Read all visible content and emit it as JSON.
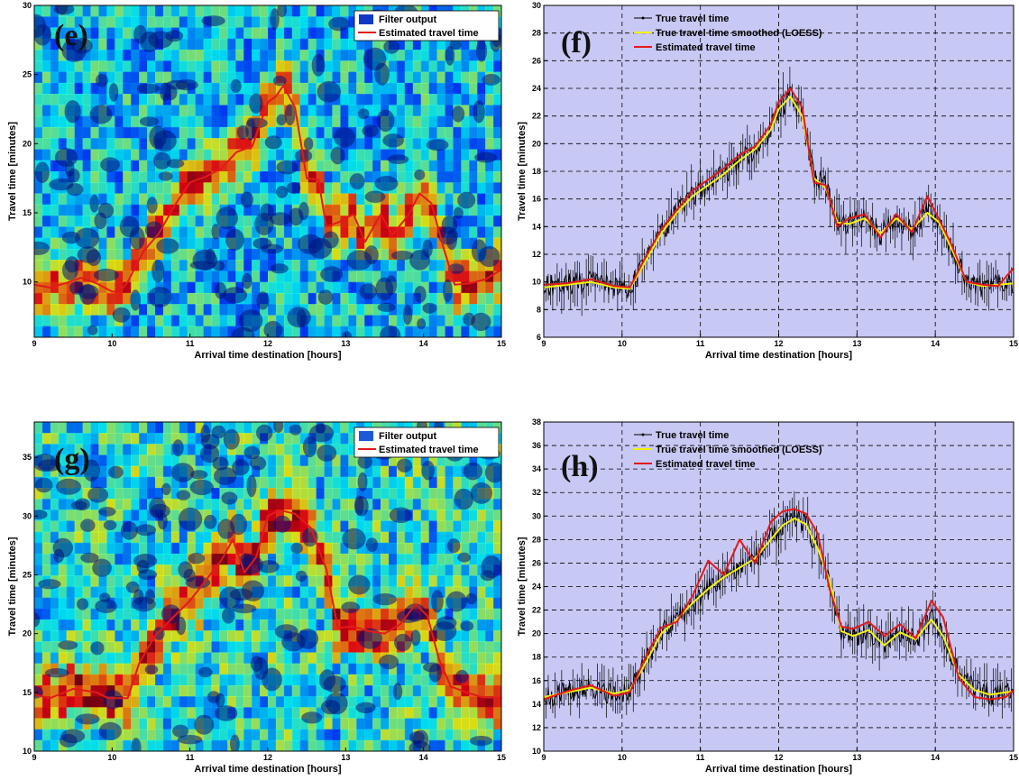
{
  "chart_data": [
    {
      "panel": "e",
      "type": "heatmap",
      "tag": "(e)",
      "xlabel": "Arrival time destination [hours]",
      "ylabel": "Travel time [minutes]",
      "xlim": [
        9,
        15
      ],
      "ylim": [
        6,
        30
      ],
      "xticks": [
        "9",
        "10",
        "11",
        "12",
        "13",
        "14",
        "15"
      ],
      "yticks": [
        "10",
        "15",
        "20",
        "25",
        "30"
      ],
      "legend": [
        "Filter output",
        "Estimated travel time"
      ],
      "legend_position": "top-right",
      "colors": {
        "filter": "#1238c8",
        "estimate": "#e21a1a"
      },
      "series": [
        {
          "name": "Estimated travel time",
          "x": [
            9.0,
            9.2,
            9.4,
            9.6,
            9.8,
            10.0,
            10.1,
            10.2,
            10.4,
            10.6,
            10.8,
            11.0,
            11.2,
            11.4,
            11.6,
            11.8,
            12.0,
            12.1,
            12.2,
            12.35,
            12.5,
            12.65,
            12.75,
            12.9,
            13.1,
            13.25,
            13.45,
            13.6,
            13.8,
            13.95,
            14.1,
            14.25,
            14.4,
            14.6,
            14.8,
            15.0
          ],
          "y": [
            9.8,
            9.6,
            9.9,
            10.3,
            9.9,
            9.3,
            9.3,
            10.0,
            12.2,
            13.5,
            15.5,
            17.2,
            17.6,
            18.2,
            19.4,
            19.8,
            23.0,
            23.4,
            24.2,
            22.6,
            17.5,
            17.4,
            14.0,
            14.3,
            14.9,
            12.9,
            14.9,
            13.4,
            14.8,
            16.4,
            15.7,
            12.6,
            9.8,
            9.9,
            10.2,
            10.9
          ]
        }
      ]
    },
    {
      "panel": "f",
      "type": "line",
      "tag": "(f)",
      "xlabel": "Arrival time destination [hours]",
      "ylabel": "Travel time [minutes]",
      "xlim": [
        9,
        15
      ],
      "ylim": [
        6,
        30
      ],
      "xticks": [
        "9",
        "10",
        "11",
        "12",
        "13",
        "14",
        "15"
      ],
      "yticks": [
        "6",
        "8",
        "10",
        "12",
        "14",
        "16",
        "18",
        "20",
        "22",
        "24",
        "26",
        "28",
        "30"
      ],
      "grid": true,
      "legend": [
        "True travel time",
        "True travel time smoothed (LOESS)",
        "Estimated travel time"
      ],
      "legend_position": "top-right",
      "colors": {
        "background": "#c8c8f4",
        "true": "#000000",
        "smoothed": "#f2f20a",
        "estimate": "#e21a1a"
      },
      "series": [
        {
          "name": "True travel time smoothed (LOESS)",
          "x": [
            9.0,
            9.3,
            9.6,
            9.9,
            10.1,
            10.3,
            10.5,
            10.7,
            10.9,
            11.1,
            11.3,
            11.5,
            11.7,
            11.9,
            12.0,
            12.15,
            12.3,
            12.45,
            12.6,
            12.75,
            12.9,
            13.1,
            13.3,
            13.5,
            13.7,
            13.9,
            14.05,
            14.2,
            14.4,
            14.6,
            14.8,
            15.0
          ],
          "y": [
            9.6,
            9.8,
            10.0,
            9.6,
            9.5,
            11.5,
            13.5,
            15.0,
            16.2,
            17.0,
            17.8,
            18.8,
            19.6,
            21.0,
            22.5,
            23.4,
            22.0,
            17.5,
            16.8,
            14.3,
            14.2,
            14.6,
            13.5,
            14.6,
            13.8,
            15.0,
            14.3,
            12.5,
            10.0,
            9.7,
            9.8,
            9.9
          ]
        },
        {
          "name": "Estimated travel time",
          "x": [
            9.0,
            9.3,
            9.6,
            9.9,
            10.1,
            10.3,
            10.5,
            10.7,
            10.9,
            11.1,
            11.3,
            11.5,
            11.7,
            11.9,
            12.0,
            12.15,
            12.3,
            12.45,
            12.6,
            12.75,
            12.9,
            13.1,
            13.3,
            13.5,
            13.7,
            13.9,
            14.05,
            14.2,
            14.4,
            14.6,
            14.8,
            15.0
          ],
          "y": [
            9.8,
            9.9,
            10.2,
            9.7,
            9.6,
            11.8,
            13.8,
            15.2,
            16.6,
            17.4,
            18.2,
            19.2,
            19.8,
            21.4,
            23.0,
            24.0,
            22.6,
            17.2,
            17.0,
            14.0,
            14.6,
            14.9,
            13.2,
            14.9,
            13.6,
            16.2,
            14.5,
            12.8,
            10.0,
            9.8,
            9.7,
            11.0
          ]
        }
      ]
    },
    {
      "panel": "g",
      "type": "heatmap",
      "tag": "(g)",
      "xlabel": "Arrival time destination [hours]",
      "ylabel": "Travel time [minutes]",
      "xlim": [
        9,
        15
      ],
      "ylim": [
        10,
        38
      ],
      "xticks": [
        "9",
        "10",
        "11",
        "12",
        "13",
        "14",
        "15"
      ],
      "yticks": [
        "10",
        "15",
        "20",
        "25",
        "30",
        "35"
      ],
      "legend": [
        "Filter output",
        "Estimated travel time"
      ],
      "legend_position": "top-right",
      "colors": {
        "filter": "#1a5ad8",
        "estimate": "#e21a1a"
      },
      "series": [
        {
          "name": "Estimated travel time",
          "x": [
            9.0,
            9.2,
            9.5,
            9.8,
            9.95,
            10.2,
            10.35,
            10.55,
            10.8,
            11.0,
            11.2,
            11.4,
            11.55,
            11.7,
            11.85,
            12.0,
            12.15,
            12.35,
            12.55,
            12.75,
            12.9,
            13.1,
            13.3,
            13.5,
            13.7,
            13.9,
            14.05,
            14.2,
            14.35,
            14.55,
            14.75,
            15.0
          ],
          "y": [
            14.8,
            14.5,
            15.3,
            15.0,
            14.5,
            14.5,
            17.5,
            19.8,
            21.5,
            22.8,
            24.5,
            26.2,
            28.0,
            25.2,
            26.5,
            30.0,
            30.5,
            30.2,
            29.0,
            25.5,
            20.5,
            20.6,
            20.2,
            20.0,
            20.8,
            22.5,
            21.5,
            17.8,
            15.5,
            15.0,
            14.6,
            14.5
          ]
        }
      ]
    },
    {
      "panel": "h",
      "type": "line",
      "tag": "(h)",
      "xlabel": "Arrival time destination [hours]",
      "ylabel": "Travel time [minutes]",
      "xlim": [
        9,
        15
      ],
      "ylim": [
        10,
        38
      ],
      "xticks": [
        "9",
        "10",
        "11",
        "12",
        "13",
        "14",
        "15"
      ],
      "yticks": [
        "10",
        "12",
        "14",
        "16",
        "18",
        "20",
        "22",
        "24",
        "26",
        "28",
        "30",
        "32",
        "34",
        "36",
        "38"
      ],
      "grid": true,
      "legend": [
        "True travel time",
        "True travel time smoothed (LOESS)",
        "Estimated travel time"
      ],
      "legend_position": "top-right",
      "colors": {
        "background": "#c8c8f4",
        "true": "#000000",
        "smoothed": "#f2f20a",
        "estimate": "#e21a1a"
      },
      "series": [
        {
          "name": "True travel time smoothed (LOESS)",
          "x": [
            9.0,
            9.3,
            9.6,
            9.9,
            10.1,
            10.3,
            10.5,
            10.7,
            10.9,
            11.1,
            11.3,
            11.5,
            11.7,
            11.9,
            12.05,
            12.2,
            12.35,
            12.5,
            12.65,
            12.8,
            12.95,
            13.15,
            13.35,
            13.55,
            13.75,
            13.95,
            14.1,
            14.3,
            14.5,
            14.7,
            14.9,
            15.0
          ],
          "y": [
            14.6,
            15.0,
            15.4,
            14.9,
            15.2,
            17.5,
            20.0,
            21.2,
            22.6,
            23.8,
            24.8,
            25.6,
            26.4,
            28.0,
            29.2,
            29.8,
            29.3,
            27.2,
            24.5,
            20.2,
            19.8,
            20.3,
            19.0,
            20.1,
            19.5,
            21.2,
            19.8,
            16.5,
            15.2,
            14.8,
            15.0,
            15.1
          ]
        },
        {
          "name": "Estimated travel time",
          "x": [
            9.0,
            9.3,
            9.6,
            9.9,
            10.1,
            10.3,
            10.5,
            10.7,
            10.9,
            11.1,
            11.3,
            11.5,
            11.7,
            11.9,
            12.05,
            12.2,
            12.35,
            12.5,
            12.65,
            12.8,
            12.95,
            13.15,
            13.35,
            13.55,
            13.75,
            13.95,
            14.1,
            14.3,
            14.5,
            14.7,
            14.9,
            15.0
          ],
          "y": [
            14.4,
            15.1,
            15.6,
            14.7,
            15.0,
            18.0,
            20.5,
            21.0,
            23.2,
            26.2,
            25.0,
            28.0,
            26.0,
            29.5,
            30.4,
            30.6,
            30.2,
            28.5,
            23.8,
            20.6,
            20.4,
            21.0,
            19.8,
            20.8,
            19.6,
            22.8,
            21.4,
            16.2,
            14.6,
            14.4,
            14.6,
            15.2
          ]
        }
      ]
    }
  ]
}
